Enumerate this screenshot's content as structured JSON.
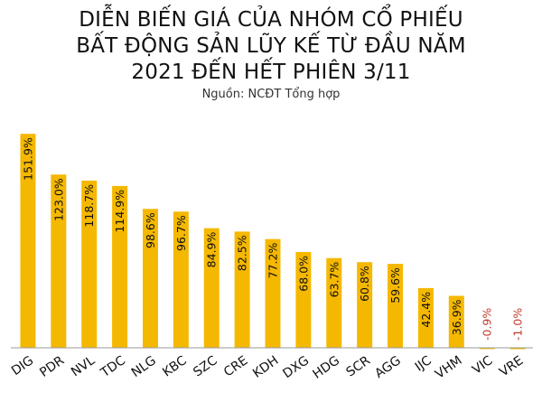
{
  "title_lines": [
    "DIỄN BIẾN GIÁ CỦA NHÓM CỔ PHIẾU",
    "BẤT ĐỘNG SẢN LŨY KẾ TỪ ĐẦU NĂM",
    "2021 ĐẾN HẾT PHIÊN 3/11"
  ],
  "source": "Nguồn: NCĐT Tổng hợp",
  "chart_data": {
    "type": "bar",
    "title": "DIỄN BIẾN GIÁ CỦA NHÓM CỔ PHIẾU BẤT ĐỘNG SẢN LŨY KẾ TỪ ĐẦU NĂM 2021 ĐẾN HẾT PHIÊN 3/11",
    "xlabel": "",
    "ylabel": "",
    "unit": "%",
    "categories": [
      "DIG",
      "PDR",
      "NVL",
      "TDC",
      "NLG",
      "KBC",
      "SZC",
      "CRE",
      "KDH",
      "DXG",
      "HDG",
      "SCR",
      "AGG",
      "IJC",
      "VHM",
      "VIC",
      "VRE"
    ],
    "values": [
      151.9,
      123.0,
      118.7,
      114.9,
      98.6,
      96.7,
      84.9,
      82.5,
      77.2,
      68.0,
      63.7,
      60.8,
      59.6,
      42.4,
      36.9,
      -0.9,
      -1.0
    ],
    "value_labels": [
      "151.9%",
      "123.0%",
      "118.7%",
      "114.9%",
      "98.6%",
      "96.7%",
      "84.9%",
      "82.5%",
      "77.2%",
      "68.0%",
      "63.7%",
      "60.8%",
      "59.6%",
      "42.4%",
      "36.9%",
      "-0.9%",
      "-1.0%"
    ],
    "ylim": [
      -1,
      152
    ],
    "grid": false,
    "legend": "none",
    "colors": {
      "bar": "#F5B800",
      "label": "#111111",
      "negative_label": "#C0392B",
      "baseline": "#9a9a9a"
    }
  }
}
